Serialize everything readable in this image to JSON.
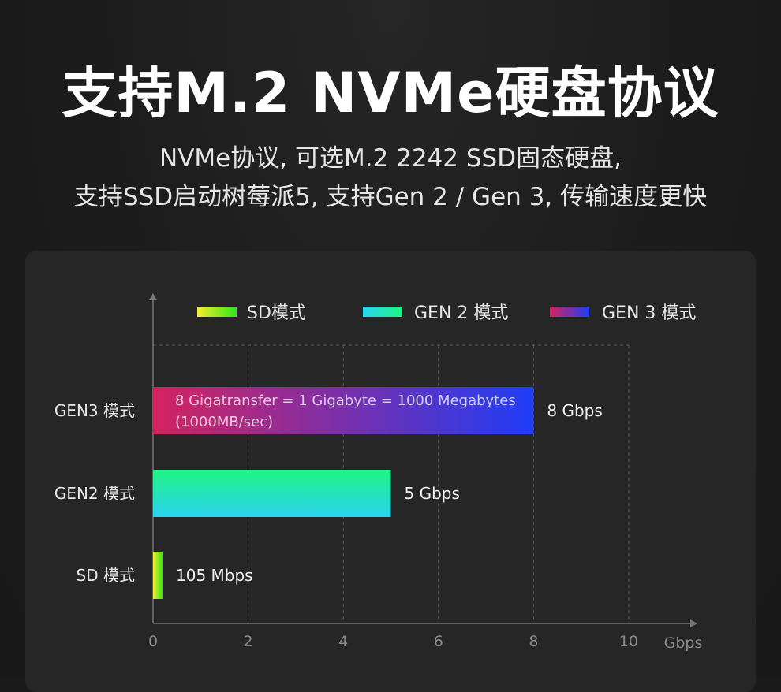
{
  "header": {
    "title": "支持M.2 NVMe硬盘协议",
    "subtitle_line1": "NVMe协议, 可选M.2  2242 SSD固态硬盘,",
    "subtitle_line2": "支持SSD启动树莓派5, 支持Gen 2 / Gen 3, 传输速度更快"
  },
  "chart_data": {
    "type": "bar",
    "orientation": "horizontal",
    "categories": [
      "GEN3 模式",
      "GEN2 模式",
      "SD 模式"
    ],
    "values": [
      8,
      5,
      0.105
    ],
    "value_labels": [
      "8 Gbps",
      "5 Gbps",
      "105 Mbps"
    ],
    "xlabel": "Gbps",
    "xlim": [
      0,
      10
    ],
    "xticks": [
      "0",
      "2",
      "4",
      "6",
      "8",
      "10"
    ],
    "grid": "dashed vertical",
    "legend": {
      "placement": "top",
      "entries": [
        "SD模式",
        "GEN 2 模式",
        "GEN 3 模式"
      ]
    },
    "annotation": {
      "line1": "8 Gigatransfer = 1 Gigabyte = 1000 Megabytes",
      "line2": "(1000MB/sec)"
    },
    "colors": {
      "gen3_label": "#e0235c",
      "gen3_start": "#d4235f",
      "gen3_end": "#1f3df7",
      "gen2_top": "#1ff582",
      "gen2_bottom": "#2ad4f0",
      "sd_start": "#f5ef2a",
      "sd_end": "#2ee61a",
      "axis": "#777777",
      "grid": "#5a5a5a"
    }
  }
}
